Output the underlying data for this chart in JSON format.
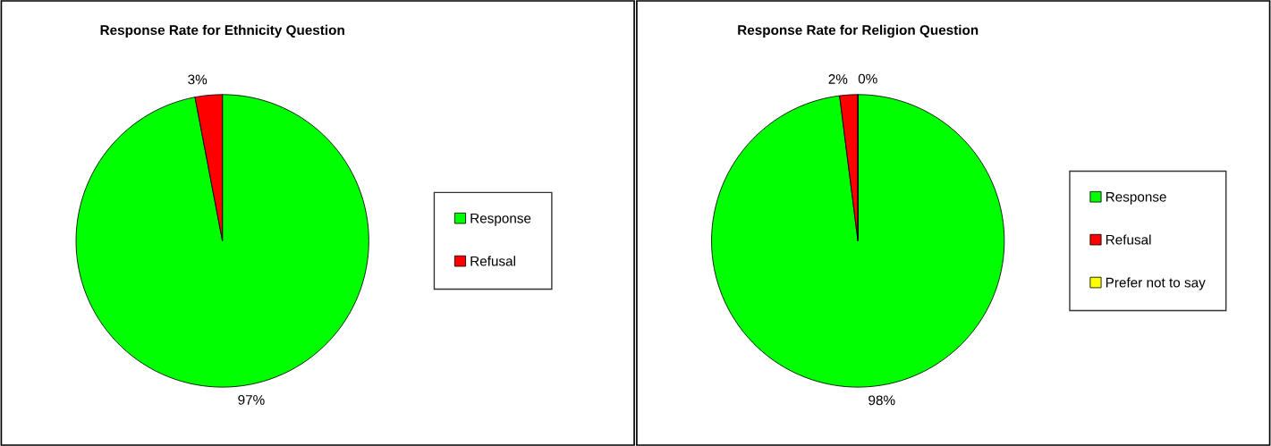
{
  "chart_data": [
    {
      "type": "pie",
      "title": "Response Rate for Ethnicity Question",
      "categories": [
        "Response",
        "Refusal"
      ],
      "values": [
        97,
        3
      ],
      "value_labels": [
        "97%",
        "3%"
      ],
      "colors": [
        "#00ff00",
        "#ff0000"
      ],
      "legend": "right"
    },
    {
      "type": "pie",
      "title": "Response Rate for Religion Question",
      "categories": [
        "Response",
        "Refusal",
        "Prefer not to say"
      ],
      "values": [
        98,
        2,
        0
      ],
      "value_labels": [
        "98%",
        "2%",
        "0%"
      ],
      "colors": [
        "#00ff00",
        "#ff0000",
        "#ffff00"
      ],
      "legend": "right"
    }
  ]
}
